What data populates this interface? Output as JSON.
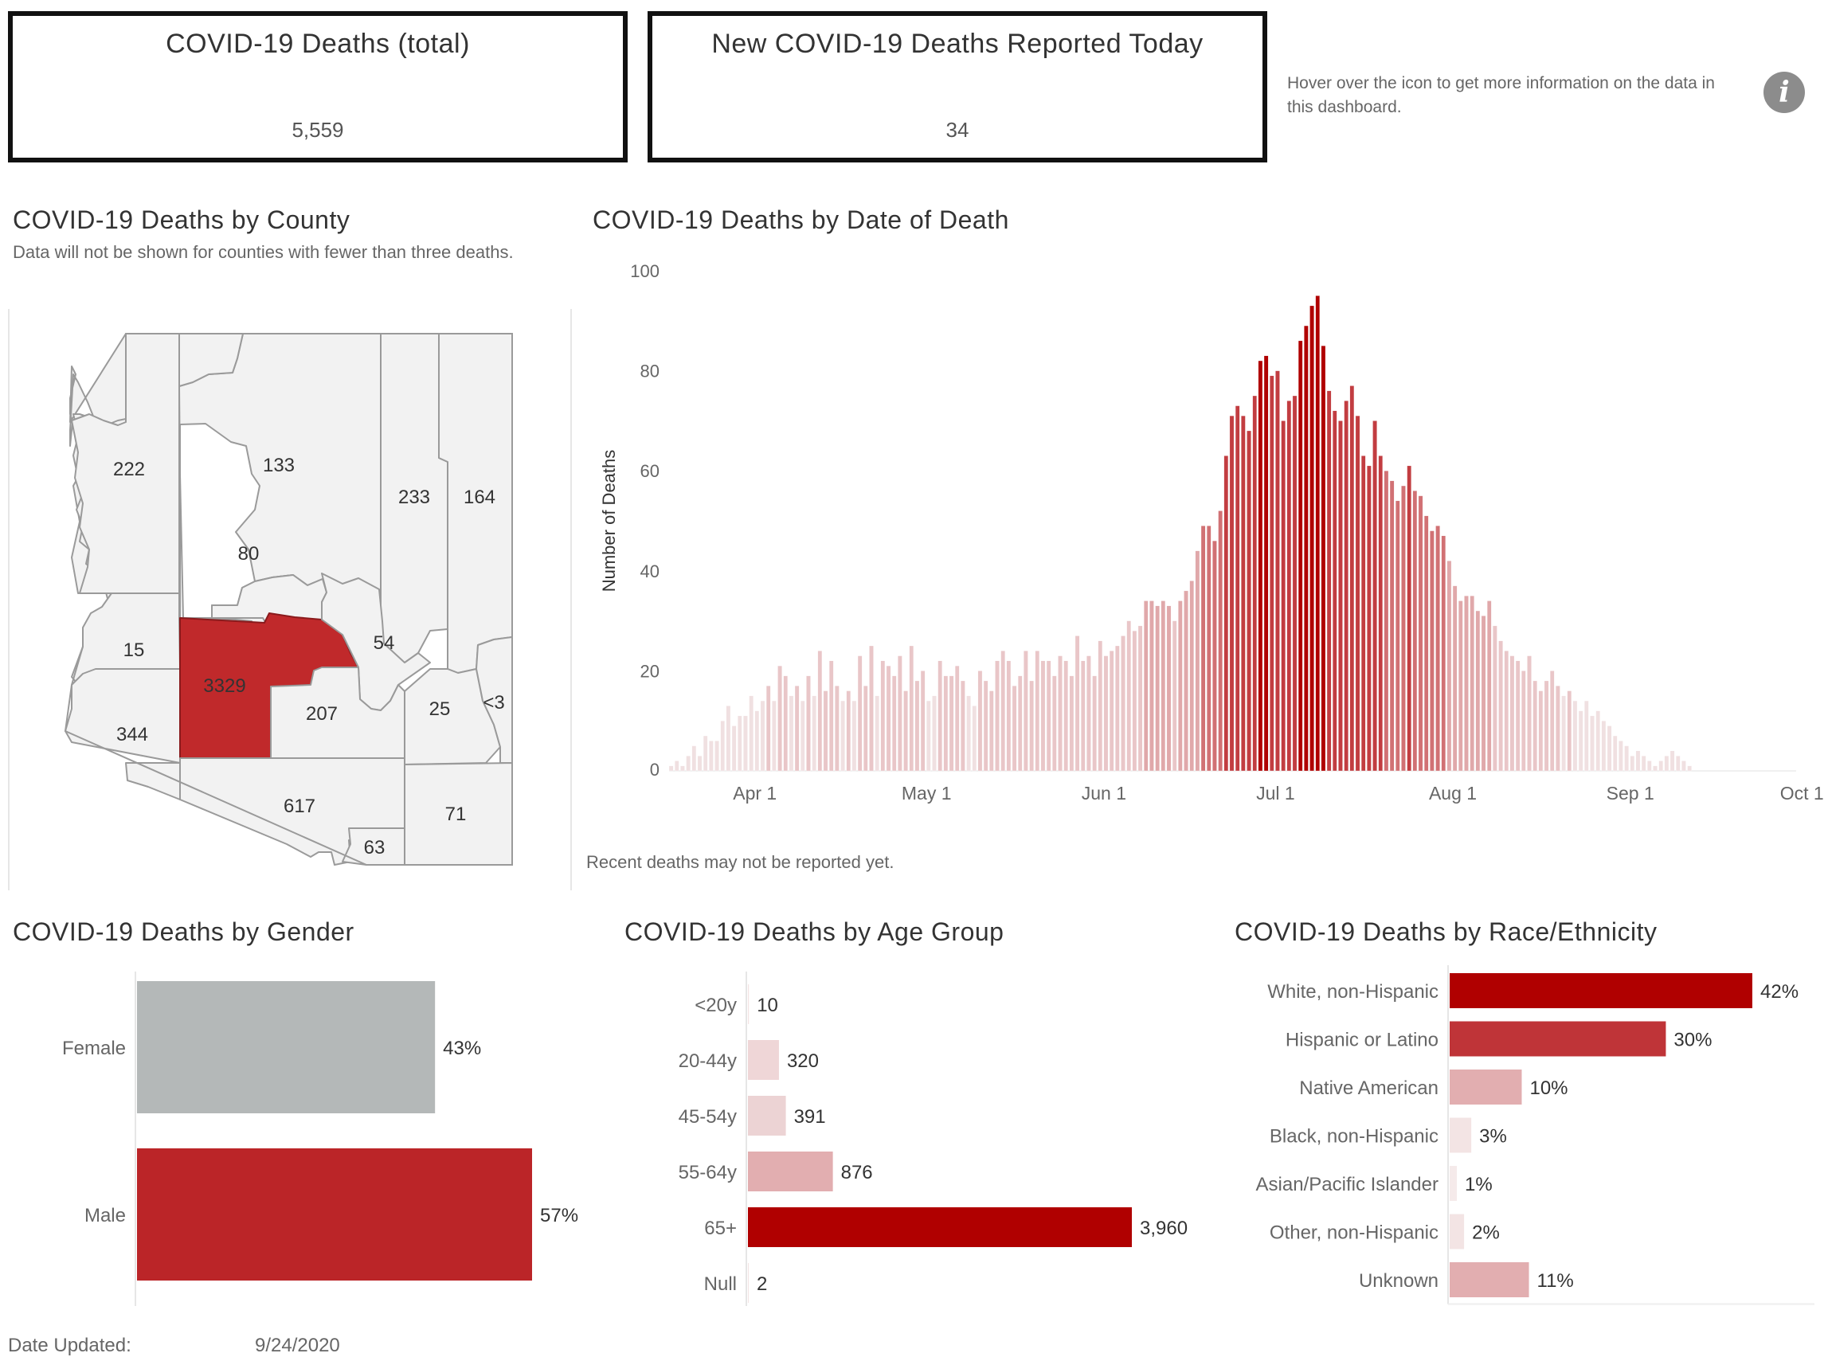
{
  "kpis": {
    "total": {
      "title": "COVID-19 Deaths (total)",
      "value": "5,559"
    },
    "today": {
      "title": "New COVID-19 Deaths Reported Today",
      "value": "34"
    }
  },
  "info": {
    "text": "Hover over the icon to get more information on the data in this dashboard.",
    "icon_glyph": "i",
    "icon": "info-icon"
  },
  "colors": {
    "dark_red": "#b00000",
    "red": "#bf3438",
    "pink": "#e0a8aa",
    "light_pink": "#f0d9da",
    "grey": "#b4b8b8",
    "map_fill": "#f2f2f2",
    "map_highlight": "#c0292b"
  },
  "county_map": {
    "title": "COVID-19 Deaths by County",
    "subtitle": "Data will not be shown for counties with fewer than three deaths.",
    "counties": [
      {
        "label": "222",
        "highlight": false
      },
      {
        "label": "133",
        "highlight": false
      },
      {
        "label": "233",
        "highlight": false
      },
      {
        "label": "164",
        "highlight": false
      },
      {
        "label": "80",
        "highlight": false
      },
      {
        "label": "15",
        "highlight": false
      },
      {
        "label": "54",
        "highlight": false
      },
      {
        "label": "3329",
        "highlight": true
      },
      {
        "label": "207",
        "highlight": false
      },
      {
        "label": "25",
        "highlight": false
      },
      {
        "label": "<3",
        "highlight": false
      },
      {
        "label": "344",
        "highlight": false
      },
      {
        "label": "617",
        "highlight": false
      },
      {
        "label": "71",
        "highlight": false
      },
      {
        "label": "63",
        "highlight": false
      }
    ]
  },
  "chart_data": [
    {
      "type": "bar",
      "orientation": "vertical",
      "title": "COVID-19 Deaths by Date of Death",
      "ylabel": "Number of Deaths",
      "xlabel": "",
      "ylim": [
        0,
        100
      ],
      "yticks": [
        0,
        20,
        40,
        60,
        80,
        100
      ],
      "x_start": "2020-03-17",
      "x_end": "2020-09-29",
      "xticks": [
        {
          "date": "2020-04-01",
          "label": "Apr 1"
        },
        {
          "date": "2020-05-01",
          "label": "May 1"
        },
        {
          "date": "2020-06-01",
          "label": "Jun 1"
        },
        {
          "date": "2020-07-01",
          "label": "Jul 1"
        },
        {
          "date": "2020-08-01",
          "label": "Aug 1"
        },
        {
          "date": "2020-09-01",
          "label": "Sep 1"
        },
        {
          "date": "2020-10-01",
          "label": "Oct 1"
        }
      ],
      "grid": false,
      "note": "Recent deaths may not be reported yet.",
      "values": [
        1,
        2,
        1,
        3,
        5,
        3,
        7,
        6,
        6,
        10,
        13,
        9,
        11,
        11,
        15,
        12,
        14,
        17,
        14,
        21,
        19,
        15,
        17,
        14,
        19,
        15,
        24,
        16,
        22,
        17,
        14,
        16,
        14,
        23,
        17,
        25,
        15,
        22,
        21,
        19,
        23,
        16,
        25,
        18,
        20,
        14,
        15,
        22,
        19,
        19,
        21,
        18,
        15,
        13,
        20,
        18,
        16,
        22,
        24,
        22,
        17,
        19,
        24,
        18,
        24,
        22,
        22,
        19,
        23,
        22,
        19,
        27,
        22,
        23,
        19,
        26,
        23,
        24,
        25,
        27,
        30,
        28,
        29,
        34,
        34,
        33,
        34,
        33,
        30,
        34,
        36,
        38,
        44,
        49,
        49,
        46,
        52,
        63,
        71,
        73,
        71,
        68,
        75,
        82,
        83,
        79,
        80,
        70,
        74,
        75,
        86,
        89,
        93,
        95,
        85,
        76,
        72,
        70,
        74,
        77,
        71,
        63,
        61,
        70,
        63,
        60,
        58,
        54,
        57,
        61,
        56,
        55,
        51,
        48,
        49,
        47,
        42,
        37,
        34,
        35,
        35,
        32,
        31,
        34,
        29,
        26,
        24,
        23,
        22,
        20,
        23,
        18,
        16,
        18,
        20,
        17,
        15,
        16,
        14,
        12,
        14,
        11,
        12,
        10,
        9,
        7,
        6,
        5,
        3,
        4,
        3,
        2,
        1,
        2,
        3,
        4,
        3,
        2,
        1
      ],
      "color_scale": [
        {
          "max": 15,
          "color": "#f0e0e1"
        },
        {
          "max": 30,
          "color": "#e9c6c8"
        },
        {
          "max": 45,
          "color": "#e0a8aa"
        },
        {
          "max": 60,
          "color": "#d17174"
        },
        {
          "max": 80,
          "color": "#c23d41"
        },
        {
          "max": 1000,
          "color": "#b00000"
        }
      ]
    },
    {
      "type": "bar",
      "orientation": "horizontal",
      "title": "COVID-19 Deaths by Gender",
      "categories": [
        "Female",
        "Male"
      ],
      "values": [
        43,
        57
      ],
      "labels": [
        "43%",
        "57%"
      ],
      "colors": [
        "#b4b8b8",
        "#bb2528"
      ]
    },
    {
      "type": "bar",
      "orientation": "horizontal",
      "title": "COVID-19 Deaths by Age Group",
      "categories": [
        "<20y",
        "20-44y",
        "45-54y",
        "55-64y",
        "65+",
        "Null"
      ],
      "values": [
        10,
        320,
        391,
        876,
        3960,
        2
      ],
      "labels": [
        "10",
        "320",
        "391",
        "876",
        "3,960",
        "2"
      ],
      "colors": [
        "#f3e4e4",
        "#efd6d7",
        "#ecd3d4",
        "#e2aeb0",
        "#b00000",
        "#f3e4e4"
      ]
    },
    {
      "type": "bar",
      "orientation": "horizontal",
      "title": "COVID-19 Deaths by Race/Ethnicity",
      "categories": [
        "White, non-Hispanic",
        "Hispanic or Latino",
        "Native American",
        "Black, non-Hispanic",
        "Asian/Pacific Islander",
        "Other, non-Hispanic",
        "Unknown"
      ],
      "values": [
        42,
        30,
        10,
        3,
        1,
        2,
        11
      ],
      "labels": [
        "42%",
        "30%",
        "10%",
        "3%",
        "1%",
        "2%",
        "11%"
      ],
      "colors": [
        "#b00000",
        "#bf3438",
        "#e2aeb0",
        "#f3e4e4",
        "#f5eaea",
        "#f3e4e4",
        "#e2aeb0"
      ]
    }
  ],
  "footer": {
    "label": "Date Updated:",
    "value": "9/24/2020"
  }
}
